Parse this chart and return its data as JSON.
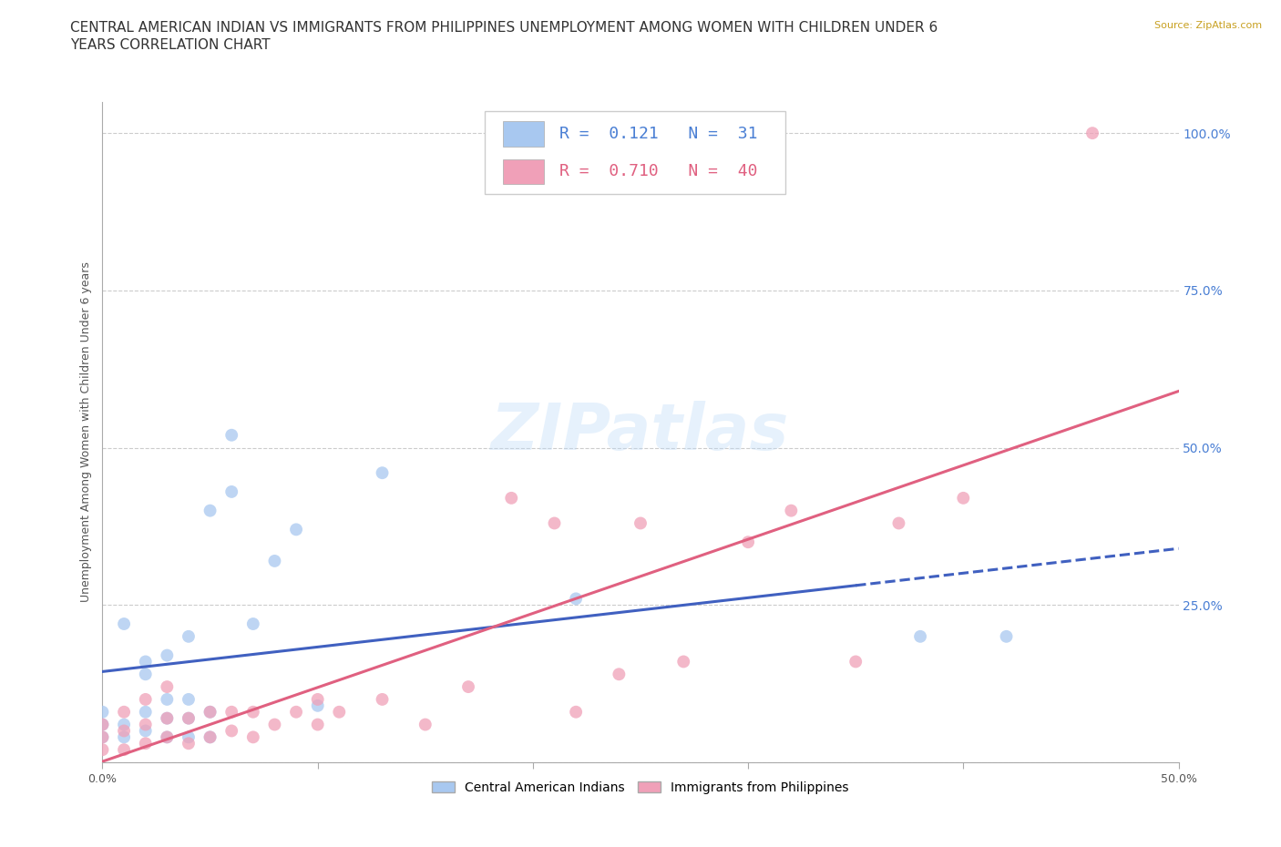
{
  "title_line1": "CENTRAL AMERICAN INDIAN VS IMMIGRANTS FROM PHILIPPINES UNEMPLOYMENT AMONG WOMEN WITH CHILDREN UNDER 6",
  "title_line2": "YEARS CORRELATION CHART",
  "source": "Source: ZipAtlas.com",
  "ylabel": "Unemployment Among Women with Children Under 6 years",
  "xlim": [
    0.0,
    0.5
  ],
  "ylim": [
    0.0,
    1.05
  ],
  "xticks": [
    0.0,
    0.1,
    0.2,
    0.3,
    0.4,
    0.5
  ],
  "xticklabels": [
    "0.0%",
    "",
    "",
    "",
    "",
    "50.0%"
  ],
  "ytick_positions": [
    0.0,
    0.25,
    0.5,
    0.75,
    1.0
  ],
  "yticklabels_right": [
    "",
    "25.0%",
    "50.0%",
    "75.0%",
    "100.0%"
  ],
  "R_blue": "0.121",
  "N_blue": "31",
  "R_pink": "0.710",
  "N_pink": "40",
  "color_blue": "#a8c8f0",
  "color_pink": "#f0a0b8",
  "line_blue": "#4060c0",
  "line_pink": "#e06080",
  "legend_label_blue": "Central American Indians",
  "legend_label_pink": "Immigrants from Philippines",
  "blue_x": [
    0.0,
    0.0,
    0.0,
    0.01,
    0.01,
    0.01,
    0.02,
    0.02,
    0.02,
    0.02,
    0.03,
    0.03,
    0.03,
    0.03,
    0.04,
    0.04,
    0.04,
    0.04,
    0.05,
    0.05,
    0.05,
    0.06,
    0.06,
    0.07,
    0.08,
    0.09,
    0.1,
    0.13,
    0.22,
    0.38,
    0.42
  ],
  "blue_y": [
    0.04,
    0.06,
    0.08,
    0.04,
    0.06,
    0.22,
    0.05,
    0.08,
    0.14,
    0.16,
    0.04,
    0.07,
    0.1,
    0.17,
    0.04,
    0.07,
    0.1,
    0.2,
    0.04,
    0.08,
    0.4,
    0.43,
    0.52,
    0.22,
    0.32,
    0.37,
    0.09,
    0.46,
    0.26,
    0.2,
    0.2
  ],
  "pink_x": [
    0.0,
    0.0,
    0.0,
    0.01,
    0.01,
    0.01,
    0.02,
    0.02,
    0.02,
    0.03,
    0.03,
    0.03,
    0.04,
    0.04,
    0.05,
    0.05,
    0.06,
    0.06,
    0.07,
    0.07,
    0.08,
    0.09,
    0.1,
    0.1,
    0.11,
    0.13,
    0.15,
    0.17,
    0.19,
    0.21,
    0.22,
    0.24,
    0.25,
    0.27,
    0.3,
    0.32,
    0.35,
    0.37,
    0.4,
    0.46
  ],
  "pink_y": [
    0.02,
    0.04,
    0.06,
    0.02,
    0.05,
    0.08,
    0.03,
    0.06,
    0.1,
    0.04,
    0.07,
    0.12,
    0.03,
    0.07,
    0.04,
    0.08,
    0.05,
    0.08,
    0.04,
    0.08,
    0.06,
    0.08,
    0.06,
    0.1,
    0.08,
    0.1,
    0.06,
    0.12,
    0.42,
    0.38,
    0.08,
    0.14,
    0.38,
    0.16,
    0.35,
    0.4,
    0.16,
    0.38,
    0.42,
    1.0
  ],
  "grid_color": "#cccccc",
  "bg_color": "#ffffff",
  "title_fontsize": 11,
  "axis_fontsize": 9,
  "right_tick_color": "#4a7fd4"
}
